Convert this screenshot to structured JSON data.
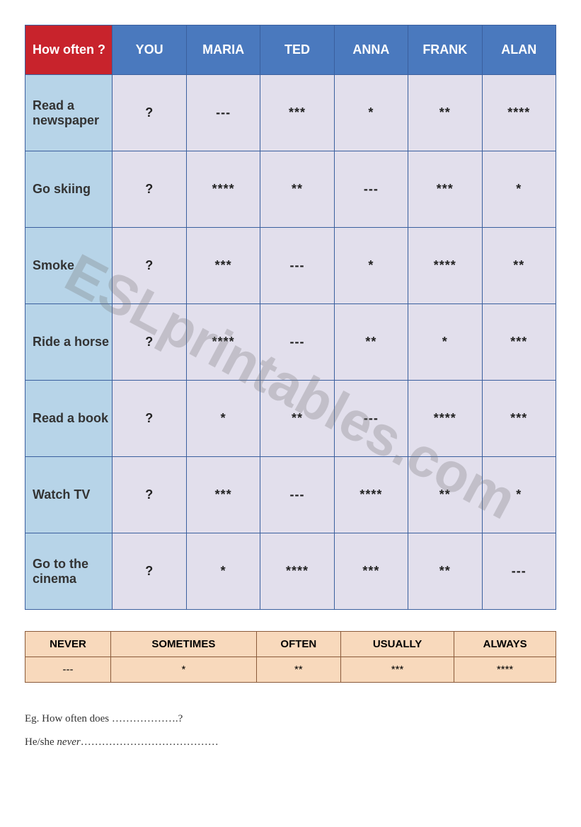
{
  "mainTable": {
    "cornerLabel": "How often ?",
    "cornerBg": "#c8232c",
    "headerBg": "#4a79be",
    "activityBg": "#b7d4e8",
    "valueBg": "#e2dfec",
    "borderColor": "#3a5f9e",
    "persons": [
      "YOU",
      "MARIA",
      "TED",
      "ANNA",
      "FRANK",
      "ALAN"
    ],
    "activities": [
      {
        "label": "Read a newspaper",
        "values": [
          "?",
          "---",
          "***",
          "*",
          "**",
          "****"
        ]
      },
      {
        "label": "Go skiing",
        "values": [
          "?",
          "****",
          "**",
          "---",
          "***",
          "*"
        ]
      },
      {
        "label": "Smoke",
        "values": [
          "?",
          "***",
          "---",
          "*",
          "****",
          "**"
        ]
      },
      {
        "label": "Ride a horse",
        "values": [
          "?",
          "****",
          "---",
          "**",
          "*",
          "***"
        ]
      },
      {
        "label": "Read a book",
        "values": [
          "?",
          "*",
          "**",
          "---",
          "****",
          "***"
        ]
      },
      {
        "label": "Watch TV",
        "values": [
          "?",
          "***",
          "---",
          "****",
          "**",
          "*"
        ]
      },
      {
        "label": "Go to the cinema",
        "values": [
          "?",
          "*",
          "****",
          "***",
          "**",
          "---"
        ]
      }
    ]
  },
  "legend": {
    "bg": "#f8d9bc",
    "borderColor": "#8a5a3a",
    "labels": [
      "NEVER",
      "SOMETIMES",
      "OFTEN",
      "USUALLY",
      "ALWAYS"
    ],
    "symbols": [
      "---",
      "*",
      "**",
      "***",
      "****"
    ]
  },
  "example": {
    "line1_prefix": "Eg. How often does ",
    "line1_suffix": "……………….?",
    "line2_prefix": "He/she ",
    "line2_italic": "never",
    "line2_suffix": "…………………………………"
  },
  "watermark": "ESLprintables.com"
}
